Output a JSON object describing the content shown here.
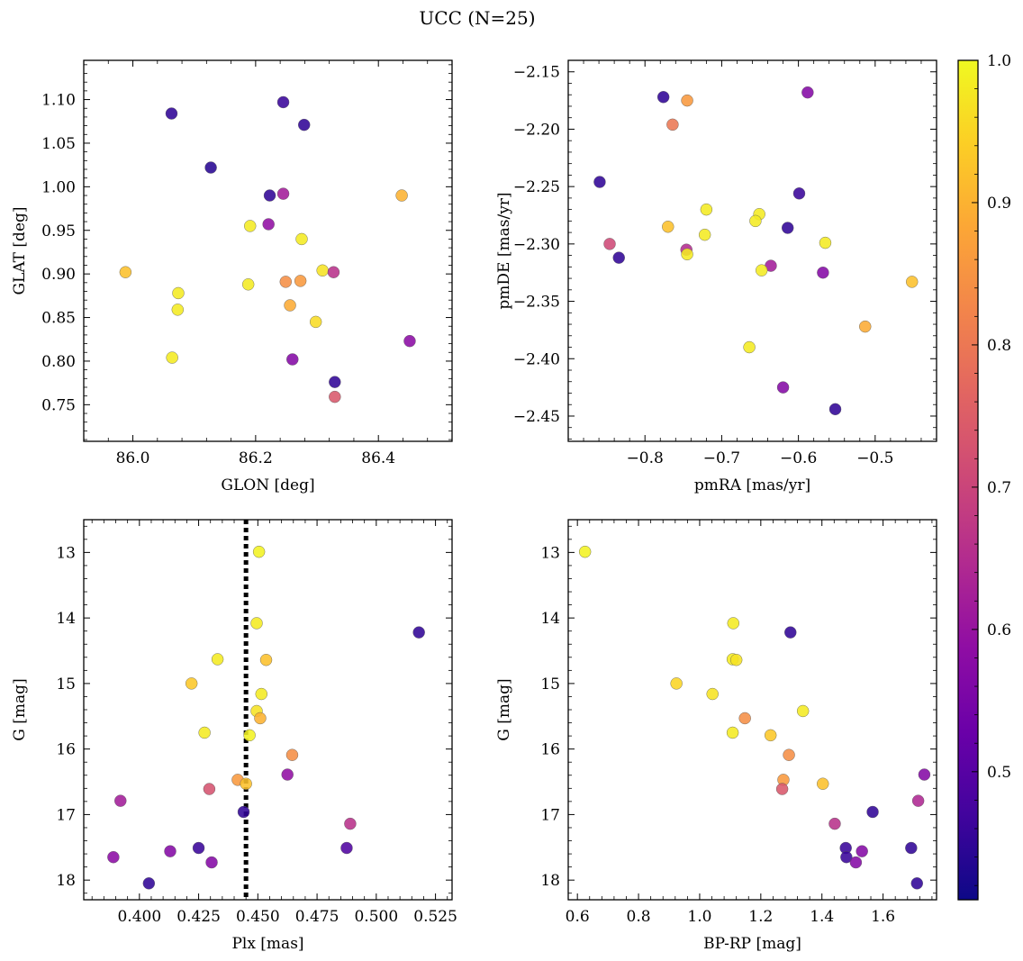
{
  "figure": {
    "suptitle": "UCC (N=25)"
  },
  "colormap": {
    "name": "plasma",
    "range": [
      0.41,
      1.0
    ],
    "tick_labels": [
      "0.5",
      "0.6",
      "0.7",
      "0.8",
      "0.9",
      "1.0"
    ],
    "tick_values": [
      0.5,
      0.6,
      0.7,
      0.8,
      0.9,
      1.0
    ]
  },
  "chart_data": [
    {
      "type": "scatter",
      "xlabel": "GLON [deg]",
      "ylabel": "GLAT [deg]",
      "xlim": [
        85.92,
        86.52
      ],
      "ylim": [
        0.708,
        1.145
      ],
      "y_inverted": false,
      "x_ticks": [
        86.0,
        86.2,
        86.4
      ],
      "x_tick_labels": [
        "86.0",
        "86.2",
        "86.4"
      ],
      "y_ticks": [
        0.75,
        0.8,
        0.85,
        0.9,
        0.95,
        1.0,
        1.05,
        1.1
      ],
      "y_tick_labels": [
        "0.75",
        "0.80",
        "0.85",
        "0.90",
        "0.95",
        "1.00",
        "1.05",
        "1.10"
      ],
      "grid": false,
      "points": [
        {
          "x": 86.063,
          "y": 1.084,
          "c": 0.45
        },
        {
          "x": 86.245,
          "y": 1.097,
          "c": 0.46
        },
        {
          "x": 86.279,
          "y": 1.071,
          "c": 0.45
        },
        {
          "x": 86.127,
          "y": 1.022,
          "c": 0.44
        },
        {
          "x": 86.223,
          "y": 0.99,
          "c": 0.45
        },
        {
          "x": 86.245,
          "y": 0.992,
          "c": 0.62
        },
        {
          "x": 86.438,
          "y": 0.99,
          "c": 0.9
        },
        {
          "x": 86.221,
          "y": 0.957,
          "c": 0.59
        },
        {
          "x": 86.191,
          "y": 0.955,
          "c": 0.98
        },
        {
          "x": 86.275,
          "y": 0.94,
          "c": 0.98
        },
        {
          "x": 85.988,
          "y": 0.902,
          "c": 0.92
        },
        {
          "x": 86.309,
          "y": 0.904,
          "c": 0.97
        },
        {
          "x": 86.327,
          "y": 0.902,
          "c": 0.66
        },
        {
          "x": 86.188,
          "y": 0.888,
          "c": 0.98
        },
        {
          "x": 86.249,
          "y": 0.891,
          "c": 0.84
        },
        {
          "x": 86.273,
          "y": 0.892,
          "c": 0.86
        },
        {
          "x": 86.074,
          "y": 0.878,
          "c": 0.98
        },
        {
          "x": 86.073,
          "y": 0.859,
          "c": 0.98
        },
        {
          "x": 86.256,
          "y": 0.864,
          "c": 0.89
        },
        {
          "x": 86.298,
          "y": 0.845,
          "c": 0.96
        },
        {
          "x": 86.451,
          "y": 0.823,
          "c": 0.58
        },
        {
          "x": 86.064,
          "y": 0.804,
          "c": 0.98
        },
        {
          "x": 86.26,
          "y": 0.802,
          "c": 0.57
        },
        {
          "x": 86.329,
          "y": 0.776,
          "c": 0.45
        },
        {
          "x": 86.329,
          "y": 0.759,
          "c": 0.74
        }
      ]
    },
    {
      "type": "scatter",
      "xlabel": "pmRA [mas/yr]",
      "ylabel": "pmDE [mas/yr]",
      "xlim": [
        -0.9,
        -0.42
      ],
      "ylim": [
        -2.472,
        -2.14
      ],
      "y_inverted": false,
      "x_ticks": [
        -0.8,
        -0.7,
        -0.6,
        -0.5
      ],
      "x_tick_labels": [
        "−0.8",
        "−0.7",
        "−0.6",
        "−0.5"
      ],
      "y_ticks": [
        -2.45,
        -2.4,
        -2.35,
        -2.3,
        -2.25,
        -2.2,
        -2.15
      ],
      "y_tick_labels": [
        "−2.45",
        "−2.40",
        "−2.35",
        "−2.30",
        "−2.25",
        "−2.20",
        "−2.15"
      ],
      "grid": false,
      "points": [
        {
          "x": -0.776,
          "y": -2.172,
          "c": 0.45
        },
        {
          "x": -0.745,
          "y": -2.175,
          "c": 0.86
        },
        {
          "x": -0.764,
          "y": -2.196,
          "c": 0.8
        },
        {
          "x": -0.588,
          "y": -2.168,
          "c": 0.57
        },
        {
          "x": -0.859,
          "y": -2.246,
          "c": 0.45
        },
        {
          "x": -0.599,
          "y": -2.256,
          "c": 0.46
        },
        {
          "x": -0.72,
          "y": -2.27,
          "c": 0.98
        },
        {
          "x": -0.651,
          "y": -2.274,
          "c": 0.98
        },
        {
          "x": -0.656,
          "y": -2.28,
          "c": 0.98
        },
        {
          "x": -0.77,
          "y": -2.285,
          "c": 0.92
        },
        {
          "x": -0.614,
          "y": -2.286,
          "c": 0.45
        },
        {
          "x": -0.722,
          "y": -2.292,
          "c": 0.98
        },
        {
          "x": -0.565,
          "y": -2.299,
          "c": 0.98
        },
        {
          "x": -0.846,
          "y": -2.3,
          "c": 0.71
        },
        {
          "x": -0.746,
          "y": -2.305,
          "c": 0.65
        },
        {
          "x": -0.745,
          "y": -2.309,
          "c": 0.98
        },
        {
          "x": -0.834,
          "y": -2.312,
          "c": 0.45
        },
        {
          "x": -0.636,
          "y": -2.319,
          "c": 0.62
        },
        {
          "x": -0.648,
          "y": -2.323,
          "c": 0.98
        },
        {
          "x": -0.568,
          "y": -2.325,
          "c": 0.57
        },
        {
          "x": -0.452,
          "y": -2.333,
          "c": 0.92
        },
        {
          "x": -0.513,
          "y": -2.372,
          "c": 0.89
        },
        {
          "x": -0.664,
          "y": -2.39,
          "c": 0.98
        },
        {
          "x": -0.62,
          "y": -2.425,
          "c": 0.57
        },
        {
          "x": -0.552,
          "y": -2.444,
          "c": 0.45
        }
      ]
    },
    {
      "type": "scatter",
      "xlabel": "Plx [mas]",
      "ylabel": "G [mag]",
      "xlim": [
        0.3765,
        0.532
      ],
      "ylim": [
        18.3,
        12.5
      ],
      "y_inverted": true,
      "x_ticks": [
        0.4,
        0.425,
        0.45,
        0.475,
        0.5,
        0.525
      ],
      "x_tick_labels": [
        "0.400",
        "0.425",
        "0.450",
        "0.475",
        "0.500",
        "0.525"
      ],
      "y_ticks": [
        13,
        14,
        15,
        16,
        17,
        18
      ],
      "y_tick_labels": [
        "13",
        "14",
        "15",
        "16",
        "17",
        "18"
      ],
      "grid": false,
      "vline": {
        "x": 0.445,
        "style": "dotted"
      },
      "points": [
        {
          "x": 0.4505,
          "y": 12.99,
          "c": 0.99
        },
        {
          "x": 0.4495,
          "y": 14.08,
          "c": 0.98
        },
        {
          "x": 0.518,
          "y": 14.22,
          "c": 0.45
        },
        {
          "x": 0.433,
          "y": 14.63,
          "c": 0.98
        },
        {
          "x": 0.4535,
          "y": 14.64,
          "c": 0.92
        },
        {
          "x": 0.422,
          "y": 15.0,
          "c": 0.93
        },
        {
          "x": 0.4515,
          "y": 15.16,
          "c": 0.98
        },
        {
          "x": 0.4495,
          "y": 15.42,
          "c": 0.97
        },
        {
          "x": 0.451,
          "y": 15.53,
          "c": 0.9
        },
        {
          "x": 0.4275,
          "y": 15.75,
          "c": 0.98
        },
        {
          "x": 0.4465,
          "y": 15.79,
          "c": 0.99
        },
        {
          "x": 0.4645,
          "y": 16.09,
          "c": 0.84
        },
        {
          "x": 0.4625,
          "y": 16.39,
          "c": 0.59
        },
        {
          "x": 0.4415,
          "y": 16.47,
          "c": 0.86
        },
        {
          "x": 0.445,
          "y": 16.53,
          "c": 0.92
        },
        {
          "x": 0.4295,
          "y": 16.61,
          "c": 0.73
        },
        {
          "x": 0.392,
          "y": 16.79,
          "c": 0.62
        },
        {
          "x": 0.444,
          "y": 16.96,
          "c": 0.45
        },
        {
          "x": 0.489,
          "y": 17.14,
          "c": 0.66
        },
        {
          "x": 0.425,
          "y": 17.51,
          "c": 0.46
        },
        {
          "x": 0.4875,
          "y": 17.51,
          "c": 0.49
        },
        {
          "x": 0.413,
          "y": 17.56,
          "c": 0.57
        },
        {
          "x": 0.389,
          "y": 17.65,
          "c": 0.58
        },
        {
          "x": 0.4305,
          "y": 17.73,
          "c": 0.57
        },
        {
          "x": 0.404,
          "y": 18.05,
          "c": 0.45
        }
      ]
    },
    {
      "type": "scatter",
      "xlabel": "BP-RP [mag]",
      "ylabel": "G [mag]",
      "xlim": [
        0.57,
        1.775
      ],
      "ylim": [
        18.3,
        12.5
      ],
      "y_inverted": true,
      "x_ticks": [
        0.6,
        0.8,
        1.0,
        1.2,
        1.4,
        1.6
      ],
      "x_tick_labels": [
        "0.6",
        "0.8",
        "1.0",
        "1.2",
        "1.4",
        "1.6"
      ],
      "y_ticks": [
        13,
        14,
        15,
        16,
        17,
        18
      ],
      "y_tick_labels": [
        "13",
        "14",
        "15",
        "16",
        "17",
        "18"
      ],
      "grid": false,
      "points": [
        {
          "x": 0.625,
          "y": 12.99,
          "c": 0.99
        },
        {
          "x": 1.11,
          "y": 14.08,
          "c": 0.98
        },
        {
          "x": 1.297,
          "y": 14.22,
          "c": 0.45
        },
        {
          "x": 1.108,
          "y": 14.63,
          "c": 0.98
        },
        {
          "x": 1.12,
          "y": 14.64,
          "c": 0.97
        },
        {
          "x": 0.924,
          "y": 15.0,
          "c": 0.95
        },
        {
          "x": 1.042,
          "y": 15.16,
          "c": 0.97
        },
        {
          "x": 1.338,
          "y": 15.42,
          "c": 0.98
        },
        {
          "x": 1.148,
          "y": 15.53,
          "c": 0.84
        },
        {
          "x": 1.108,
          "y": 15.75,
          "c": 0.98
        },
        {
          "x": 1.232,
          "y": 15.79,
          "c": 0.93
        },
        {
          "x": 1.292,
          "y": 16.09,
          "c": 0.84
        },
        {
          "x": 1.735,
          "y": 16.39,
          "c": 0.57
        },
        {
          "x": 1.274,
          "y": 16.47,
          "c": 0.86
        },
        {
          "x": 1.403,
          "y": 16.53,
          "c": 0.92
        },
        {
          "x": 1.27,
          "y": 16.61,
          "c": 0.74
        },
        {
          "x": 1.715,
          "y": 16.79,
          "c": 0.64
        },
        {
          "x": 1.566,
          "y": 16.96,
          "c": 0.45
        },
        {
          "x": 1.442,
          "y": 17.14,
          "c": 0.66
        },
        {
          "x": 1.478,
          "y": 17.51,
          "c": 0.46
        },
        {
          "x": 1.692,
          "y": 17.51,
          "c": 0.45
        },
        {
          "x": 1.531,
          "y": 17.56,
          "c": 0.57
        },
        {
          "x": 1.48,
          "y": 17.65,
          "c": 0.46
        },
        {
          "x": 1.511,
          "y": 17.73,
          "c": 0.57
        },
        {
          "x": 1.711,
          "y": 18.05,
          "c": 0.45
        }
      ]
    }
  ]
}
